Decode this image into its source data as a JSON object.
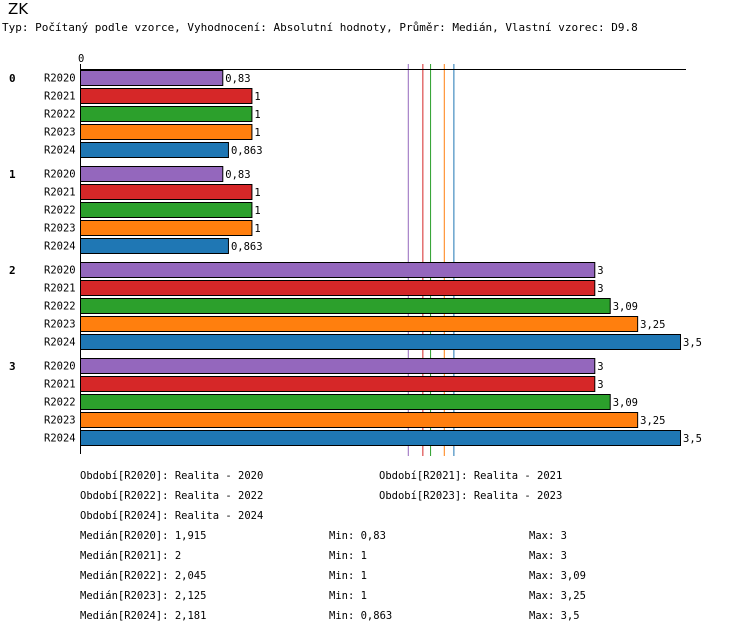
{
  "title": "ZK",
  "subtitle": "Typ: Počítaný podle vzorce, Vyhodnocení: Absolutní hodnoty, Průměr: Medián, Vlastní vzorec: D9.8",
  "chart_data": {
    "type": "bar",
    "orientation": "horizontal",
    "axis_zero_label": "0",
    "xlim": [
      0,
      3.5
    ],
    "groups": [
      "0",
      "1",
      "2",
      "3"
    ],
    "categories": [
      "R2020",
      "R2021",
      "R2022",
      "R2023",
      "R2024"
    ],
    "colors": {
      "R2020": "#9467bd",
      "R2021": "#d62728",
      "R2022": "#2ca02c",
      "R2023": "#ff7f0e",
      "R2024": "#1f77b4"
    },
    "series": [
      {
        "group": "0",
        "values": [
          0.83,
          1,
          1,
          1,
          0.863
        ],
        "labels": [
          "0,83",
          "1",
          "1",
          "1",
          "0,863"
        ]
      },
      {
        "group": "1",
        "values": [
          0.83,
          1,
          1,
          1,
          0.863
        ],
        "labels": [
          "0,83",
          "1",
          "1",
          "1",
          "0,863"
        ]
      },
      {
        "group": "2",
        "values": [
          3,
          3,
          3.09,
          3.25,
          3.5
        ],
        "labels": [
          "3",
          "3",
          "3,09",
          "3,25",
          "3,5"
        ]
      },
      {
        "group": "3",
        "values": [
          3,
          3,
          3.09,
          3.25,
          3.5
        ],
        "labels": [
          "3",
          "3",
          "3,09",
          "3,25",
          "3,5"
        ]
      }
    ],
    "reference_lines": [
      {
        "series": "R2020",
        "value": 1.915
      },
      {
        "series": "R2021",
        "value": 2
      },
      {
        "series": "R2022",
        "value": 2.045
      },
      {
        "series": "R2023",
        "value": 2.125
      },
      {
        "series": "R2024",
        "value": 2.181
      }
    ]
  },
  "footer": {
    "periods": [
      "Období[R2020]: Realita - 2020",
      "Období[R2021]: Realita - 2021",
      "Období[R2022]: Realita - 2022",
      "Období[R2023]: Realita - 2023",
      "Období[R2024]: Realita - 2024"
    ],
    "stats": [
      {
        "median": "Medián[R2020]: 1,915",
        "min": "Min: 0,83",
        "max": "Max: 3"
      },
      {
        "median": "Medián[R2021]: 2",
        "min": "Min: 1",
        "max": "Max: 3"
      },
      {
        "median": "Medián[R2022]: 2,045",
        "min": "Min: 1",
        "max": "Max: 3,09"
      },
      {
        "median": "Medián[R2023]: 2,125",
        "min": "Min: 1",
        "max": "Max: 3,25"
      },
      {
        "median": "Medián[R2024]: 2,181",
        "min": "Min: 0,863",
        "max": "Max: 3,5"
      }
    ]
  }
}
